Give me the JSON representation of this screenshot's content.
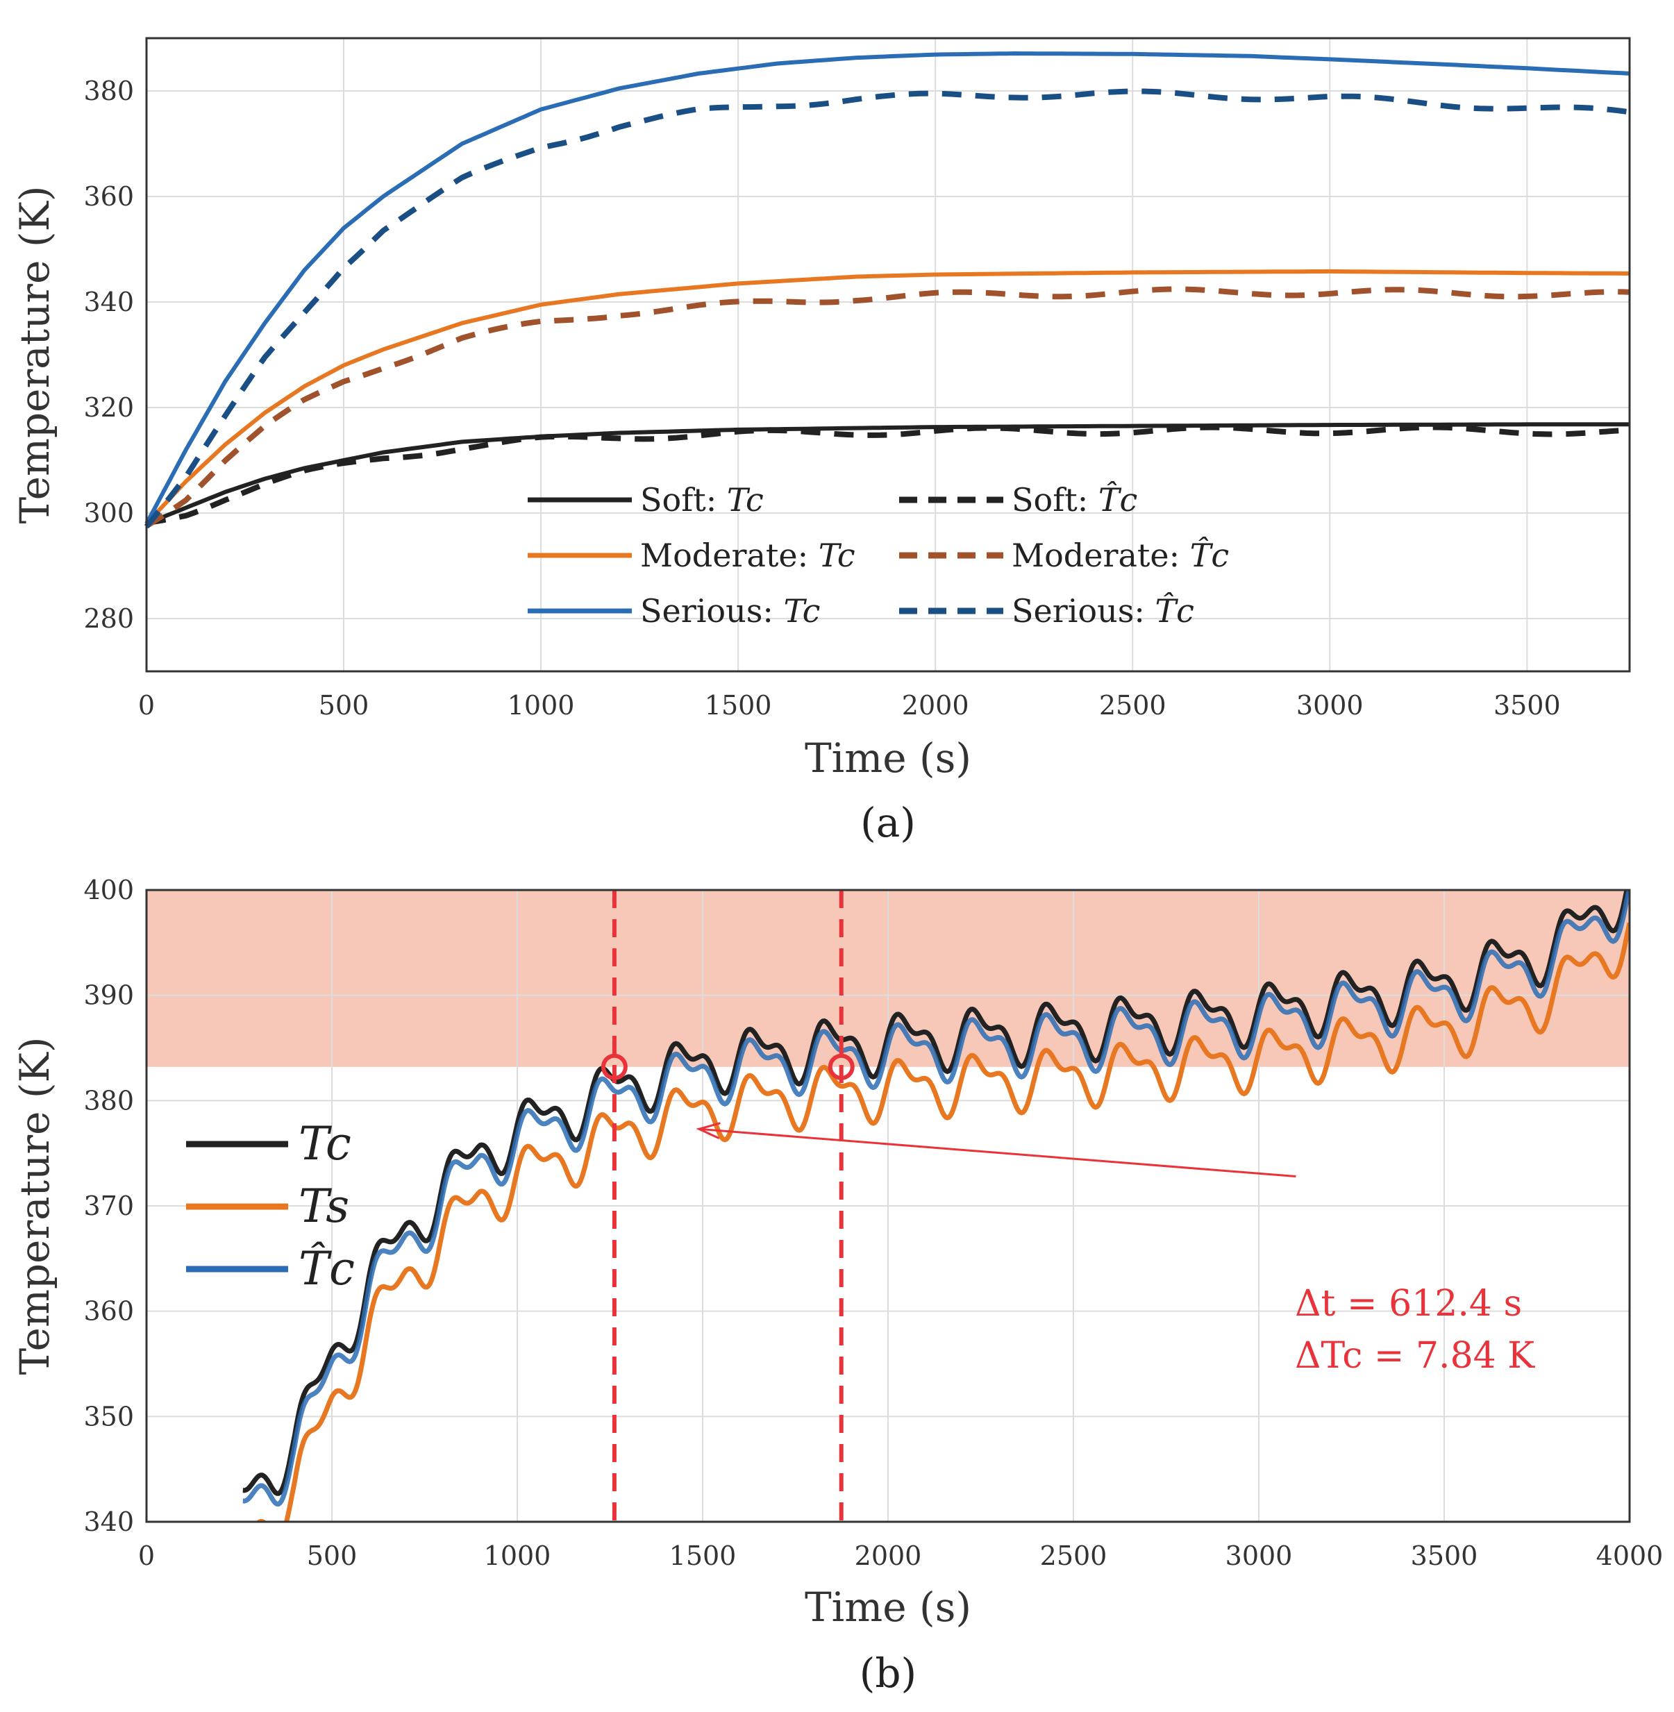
{
  "chart_data": [
    {
      "panel": "a",
      "type": "line",
      "caption": "(a)",
      "xlabel": "Time (s)",
      "ylabel": "Temperature (K)",
      "xlim": [
        0,
        3760
      ],
      "ylim": [
        270,
        390
      ],
      "xticks": [
        0,
        500,
        1000,
        1500,
        2000,
        2500,
        3000,
        3500
      ],
      "yticks": [
        280,
        300,
        320,
        340,
        360,
        380
      ],
      "grid": true,
      "legend_position": "bottom-center",
      "series": [
        {
          "name": "Soft: Tc",
          "label_prefix": "Soft: ",
          "label_symbol": "Tc",
          "color": "#222222",
          "dash": "solid",
          "x": [
            0,
            100,
            200,
            300,
            400,
            500,
            600,
            800,
            1000,
            1200,
            1500,
            1800,
            2000,
            2500,
            3000,
            3500,
            3760
          ],
          "y": [
            298,
            301,
            304,
            306.5,
            308.5,
            310,
            311.5,
            313.5,
            314.5,
            315.2,
            315.8,
            316.1,
            316.3,
            316.5,
            316.7,
            316.8,
            316.8
          ]
        },
        {
          "name": "Moderate: Tc",
          "label_prefix": "Moderate: ",
          "label_symbol": "Tc",
          "color": "#e87722",
          "dash": "solid",
          "x": [
            0,
            100,
            200,
            300,
            400,
            500,
            600,
            800,
            1000,
            1200,
            1500,
            1800,
            2000,
            2500,
            3000,
            3500,
            3760
          ],
          "y": [
            298,
            306,
            313,
            319,
            324,
            328,
            331,
            336,
            339.5,
            341.5,
            343.5,
            344.8,
            345.2,
            345.6,
            345.8,
            345.5,
            345.4
          ]
        },
        {
          "name": "Serious: Tc",
          "label_prefix": "Serious: ",
          "label_symbol": "Tc",
          "color": "#2a6db5",
          "dash": "solid",
          "x": [
            0,
            100,
            200,
            300,
            400,
            500,
            600,
            800,
            1000,
            1200,
            1400,
            1600,
            1800,
            2000,
            2200,
            2500,
            2800,
            3000,
            3300,
            3500,
            3760
          ],
          "y": [
            298,
            312,
            325,
            336,
            346,
            354,
            360,
            370,
            376.5,
            380.5,
            383.3,
            385.2,
            386.3,
            386.9,
            387.1,
            387.0,
            386.6,
            386.0,
            385.0,
            384.3,
            383.3
          ]
        },
        {
          "name": "Soft: T̂c",
          "label_prefix": "Soft: ",
          "label_symbol": "T̂c",
          "color": "#222222",
          "dash": "dashed",
          "x": [
            0,
            100,
            200,
            300,
            400,
            500,
            600,
            800,
            1000,
            1200,
            1500,
            1800,
            2000,
            2500,
            3000,
            3500,
            3760
          ],
          "y": [
            298,
            300,
            303,
            305.5,
            307.5,
            309,
            310.5,
            312.5,
            313.8,
            314.5,
            315.0,
            315.3,
            315.5,
            315.6,
            315.7,
            315.6,
            315.3
          ]
        },
        {
          "name": "Moderate: T̂c",
          "label_prefix": "Moderate: ",
          "label_symbol": "T̂c",
          "color": "#a0522d",
          "dash": "dashed",
          "x": [
            0,
            100,
            200,
            300,
            400,
            500,
            600,
            800,
            1000,
            1200,
            1400,
            1600,
            1800,
            2000,
            2200,
            2500,
            2800,
            3000,
            3300,
            3500,
            3760
          ],
          "y": [
            298,
            303,
            310,
            316,
            321,
            325,
            328,
            333,
            336,
            338,
            339,
            340,
            340.8,
            341.2,
            341.5,
            341.8,
            341.9,
            341.8,
            341.7,
            341.6,
            341.3
          ]
        },
        {
          "name": "Serious: T̂c",
          "label_prefix": "Serious: ",
          "label_symbol": "T̂c",
          "color": "#1a4f85",
          "dash": "dashed",
          "x": [
            0,
            100,
            200,
            300,
            400,
            500,
            600,
            800,
            1000,
            1200,
            1400,
            1600,
            1800,
            2000,
            2200,
            2400,
            2600,
            2800,
            3000,
            3200,
            3400,
            3600,
            3760
          ],
          "y": [
            298,
            307,
            318,
            329,
            338,
            347,
            354,
            363,
            369.5,
            373.5,
            376,
            377.5,
            378.5,
            379,
            379.3,
            379.4,
            379.3,
            379.0,
            378.6,
            377.9,
            377.2,
            376.4,
            375.8
          ]
        }
      ]
    },
    {
      "panel": "b",
      "type": "line",
      "caption": "(b)",
      "xlabel": "Time (s)",
      "ylabel": "Temperature (K)",
      "xlim": [
        0,
        4000
      ],
      "ylim": [
        340,
        400
      ],
      "xticks": [
        0,
        500,
        1000,
        1500,
        2000,
        2500,
        3000,
        3500,
        4000
      ],
      "yticks": [
        340,
        350,
        360,
        370,
        380,
        390,
        400
      ],
      "grid": true,
      "legend_position": "left",
      "threshold_region": {
        "y_from": 383.2,
        "y_to": 400,
        "color": "#f7c8b8"
      },
      "vertical_markers": [
        1262,
        1874
      ],
      "marker_points": [
        {
          "x": 1262,
          "y": 383.2
        },
        {
          "x": 1874,
          "y": 383.2
        }
      ],
      "annotation": {
        "line1": "Δt = 612.4 s",
        "line2": "ΔTc = 7.84 K",
        "arrow_from": [
          3100,
          372.8
        ],
        "arrow_to": [
          1490,
          377.3
        ]
      },
      "series": [
        {
          "name": "Tc",
          "label": "Tc",
          "color": "#222222",
          "offset_k": 0.6,
          "trend_x": [
            250,
            300,
            400,
            500,
            600,
            700,
            800,
            900,
            1000,
            1100,
            1200,
            1300,
            1500,
            1700,
            2000,
            2500,
            3000,
            3500,
            3800,
            4000
          ],
          "trend_y": [
            341,
            343,
            347,
            355,
            362,
            367,
            371,
            374.5,
            376.5,
            378,
            379.5,
            381,
            383,
            384,
            385,
            386.2,
            387.8,
            390.5,
            394,
            400
          ]
        },
        {
          "name": "Ts",
          "label": "Ts",
          "color": "#e87722",
          "offset_k": -3.8,
          "trend_x": [
            250,
            300,
            400,
            500,
            600,
            700,
            800,
            900,
            1000,
            1100,
            1200,
            1300,
            1500,
            1700,
            2000,
            2500,
            3000,
            3500,
            3800,
            4000
          ],
          "trend_y": [
            341,
            343,
            347,
            355,
            362,
            367,
            371,
            374.5,
            376.5,
            378,
            379.5,
            381,
            383,
            384,
            385,
            386.2,
            387.8,
            390.5,
            394,
            400
          ]
        },
        {
          "name": "T̂c",
          "label": "T̂c",
          "color": "#2a6db5",
          "offset_k": -0.4,
          "trend_x": [
            250,
            300,
            400,
            500,
            600,
            700,
            800,
            900,
            1000,
            1100,
            1200,
            1300,
            1500,
            1700,
            2000,
            2500,
            3000,
            3500,
            3800,
            4000
          ],
          "trend_y": [
            341,
            343,
            347,
            355,
            362,
            367,
            371,
            374.5,
            376.5,
            378,
            379.5,
            381,
            383,
            384,
            385,
            386.2,
            387.8,
            390.5,
            394,
            400
          ]
        }
      ],
      "oscillation": {
        "period_s": 200,
        "amplitude_k": 3.4
      }
    }
  ]
}
